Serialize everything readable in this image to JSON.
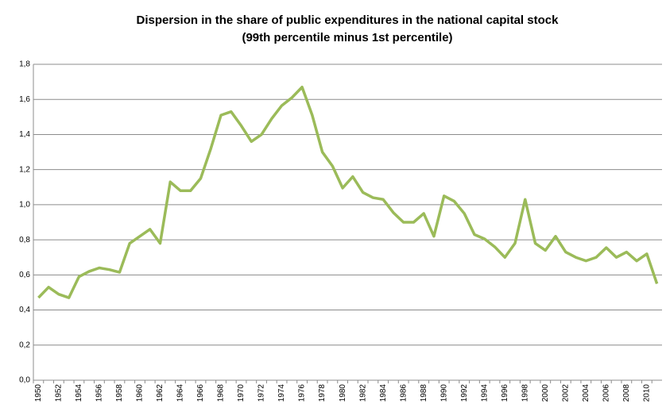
{
  "chart_data": {
    "type": "line",
    "title": "Dispersion in the share of public expenditures in the national capital stock",
    "subtitle": "(99th percentile minus 1st percentile)",
    "categories": [
      "1950",
      null,
      "1952",
      null,
      "1954",
      null,
      "1956",
      null,
      "1958",
      null,
      "1960",
      null,
      "1962",
      null,
      "1964",
      null,
      "1966",
      null,
      "1968",
      null,
      "1970",
      null,
      "1972",
      null,
      "1974",
      null,
      "1976",
      null,
      "1978",
      null,
      "1980",
      null,
      "1982",
      null,
      "1984",
      null,
      "1986",
      null,
      "1988",
      null,
      "1990",
      null,
      "1992",
      null,
      "1994",
      null,
      "1996",
      null,
      "1998",
      null,
      "2000",
      null,
      "2002",
      null,
      "2004",
      null,
      "2006",
      null,
      "2008",
      null,
      "2010",
      null
    ],
    "values": [
      0.47,
      0.53,
      0.49,
      0.47,
      0.59,
      0.62,
      0.64,
      0.63,
      0.615,
      0.78,
      0.82,
      0.86,
      0.78,
      1.13,
      1.08,
      1.08,
      1.15,
      1.32,
      1.51,
      1.53,
      1.45,
      1.36,
      1.4,
      1.49,
      1.565,
      1.61,
      1.67,
      1.51,
      1.3,
      1.22,
      1.095,
      1.16,
      1.07,
      1.04,
      1.03,
      0.955,
      0.9,
      0.9,
      0.95,
      0.82,
      1.05,
      1.02,
      0.95,
      0.83,
      0.805,
      0.76,
      0.7,
      0.78,
      1.03,
      0.78,
      0.74,
      0.82,
      0.73,
      0.7,
      0.68,
      0.7,
      0.755,
      0.7,
      0.73,
      0.68,
      0.72,
      0.55
    ],
    "color": "#9bbb59",
    "ylim": [
      0,
      1.8
    ],
    "yticks": [
      {
        "value": 0,
        "label": "0,0"
      },
      {
        "value": 0.2,
        "label": "0,2"
      },
      {
        "value": 0.4,
        "label": "0,4"
      },
      {
        "value": 0.6,
        "label": "0,6"
      },
      {
        "value": 0.8,
        "label": "0,8"
      },
      {
        "value": 1,
        "label": "1,0"
      },
      {
        "value": 1.2,
        "label": "1,2"
      },
      {
        "value": 1.4,
        "label": "1,4"
      },
      {
        "value": 1.6,
        "label": "1,6"
      },
      {
        "value": 1.8,
        "label": "1,8"
      }
    ],
    "grid": true
  }
}
